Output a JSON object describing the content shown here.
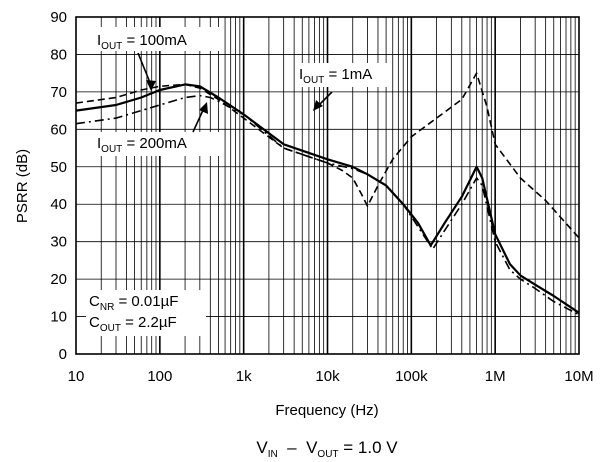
{
  "chart_data": {
    "type": "line",
    "title": "",
    "xlabel": "Frequency (Hz)",
    "ylabel": "PSRR (dB)",
    "x_scale": "log",
    "xlim": [
      10,
      10000000
    ],
    "ylim": [
      0,
      90
    ],
    "x_ticks": [
      {
        "value": 10,
        "label": "10"
      },
      {
        "value": 100,
        "label": "100"
      },
      {
        "value": 1000,
        "label": "1k"
      },
      {
        "value": 10000,
        "label": "10k"
      },
      {
        "value": 100000,
        "label": "100k"
      },
      {
        "value": 1000000,
        "label": "1M"
      },
      {
        "value": 10000000,
        "label": "10M"
      }
    ],
    "y_ticks": [
      0,
      10,
      20,
      30,
      40,
      50,
      60,
      70,
      80,
      90
    ],
    "grid": true,
    "series": [
      {
        "name": "IOUT = 100mA",
        "style": "solid",
        "x": [
          10,
          30,
          60,
          100,
          200,
          300,
          500,
          1000,
          3000,
          10000,
          20000,
          30000,
          50000,
          80000,
          120000,
          170000,
          250000,
          400000,
          600000,
          700000,
          1000000,
          1500000,
          2000000,
          3000000,
          5000000,
          10000000
        ],
        "y": [
          65,
          66.5,
          68.5,
          70.5,
          72,
          71.5,
          68.5,
          64,
          56,
          52,
          50,
          48,
          45,
          40,
          35,
          29,
          35,
          42,
          50,
          47,
          32,
          24,
          21,
          18.5,
          15.5,
          11
        ]
      },
      {
        "name": "IOUT = 1mA",
        "style": "dashed",
        "x": [
          10,
          30,
          60,
          100,
          200,
          300,
          500,
          1000,
          3000,
          10000,
          15000,
          20000,
          25000,
          30000,
          40000,
          60000,
          100000,
          200000,
          400000,
          600000,
          800000,
          1000000,
          2000000,
          4000000,
          10000000
        ],
        "y": [
          67,
          68.5,
          70.5,
          71.5,
          72,
          71,
          68,
          63,
          55,
          51,
          49,
          47,
          43,
          39.5,
          45,
          52,
          58,
          63,
          68,
          75,
          66,
          56,
          47,
          41,
          31
        ]
      },
      {
        "name": "IOUT = 200mA",
        "style": "dashdot",
        "x": [
          10,
          30,
          60,
          100,
          200,
          300,
          400,
          500,
          1000,
          3000,
          10000,
          20000,
          30000,
          50000,
          80000,
          120000,
          180000,
          250000,
          400000,
          600000,
          700000,
          1000000,
          1500000,
          2000000,
          3000000,
          5000000,
          10000000
        ],
        "y": [
          61.5,
          63,
          65,
          66.5,
          68.5,
          69,
          68.5,
          67.5,
          64,
          55,
          51,
          49.5,
          48,
          45,
          40,
          34,
          28,
          33,
          40,
          47,
          45,
          30,
          22.5,
          20,
          17.5,
          14,
          10.5
        ]
      }
    ],
    "annotations": {
      "iout_100": {
        "main": "I",
        "sub": "OUT",
        "rest": " = 100mA"
      },
      "iout_1": {
        "main": "I",
        "sub": "OUT",
        "rest": " = 1mA"
      },
      "iout_200": {
        "main": "I",
        "sub": "OUT",
        "rest": " = 200mA"
      },
      "cnr": {
        "main": "C",
        "sub": "NR",
        "rest": " = 0.01µF"
      },
      "cout": {
        "main": "C",
        "sub": "OUT",
        "rest": " = 2.2µF"
      }
    },
    "condition": {
      "vin": "V",
      "vin_sub": "IN",
      "minus": "  –  ",
      "vout": "V",
      "vout_sub": "OUT",
      "rest": " = 1.0 V"
    }
  }
}
